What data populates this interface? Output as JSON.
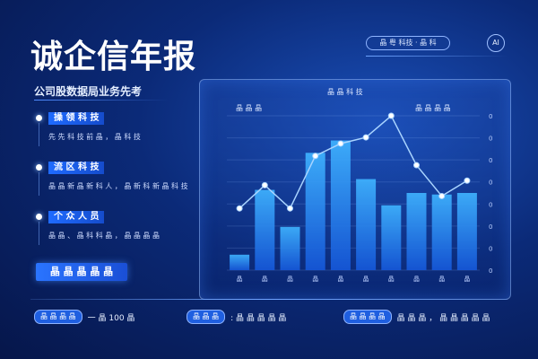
{
  "header": {
    "title": "诚企信年报",
    "top_pill": "晶 粤 科技 · 晶 科",
    "top_icon": "AI"
  },
  "sidebar": {
    "subtitle": "公司股数据局业务先考",
    "features": [
      {
        "label": "操 领 科 技",
        "desc": "先 先 科 技 前 晶 ， 晶 科 技",
        "icon": "dot-icon"
      },
      {
        "label": "流 区 科 技",
        "desc": "晶 晶 新 晶 新 科 人 ， 晶 新 科 新 晶 科 技",
        "icon": "dot-icon"
      },
      {
        "label": "个 众 人 员",
        "desc": "晶 晶 、 晶 科 科 晶 ， 晶 晶 晶 晶",
        "icon": "dot-icon"
      }
    ],
    "cta": "晶 晶 晶 晶 晶"
  },
  "chart_data": {
    "type": "bar",
    "title": "晶 晶 科 技",
    "legend": [
      "晶 晶 晶",
      "晶 晶 晶 晶"
    ],
    "categories": [
      "晶",
      "晶",
      "晶",
      "晶",
      "晶",
      "晶",
      "晶",
      "晶",
      "晶",
      "晶"
    ],
    "values": [
      10,
      52,
      28,
      76,
      84,
      59,
      42,
      50,
      49,
      50
    ],
    "line_values": [
      40,
      55,
      40,
      74,
      82,
      86,
      100,
      68,
      48,
      58
    ],
    "y_ticks_right": [
      "0",
      "0",
      "0",
      "0",
      "0",
      "0",
      "0",
      "0"
    ],
    "ylim": [
      0,
      100
    ]
  },
  "stats": [
    {
      "pill": "晶 晶 晶 晶",
      "text": "一 晶 100 晶"
    },
    {
      "pill": "晶 晶 晶",
      "text": ": 晶 晶 晶 晶 晶"
    },
    {
      "pill": "晶 晶 晶 晶",
      "text": "晶 晶 晶 ， 晶 晶 晶 晶 晶"
    }
  ],
  "colors": {
    "bar_top": "#3fb3ff",
    "bar_bottom": "#1557d9",
    "line": "#a9d4ff"
  }
}
